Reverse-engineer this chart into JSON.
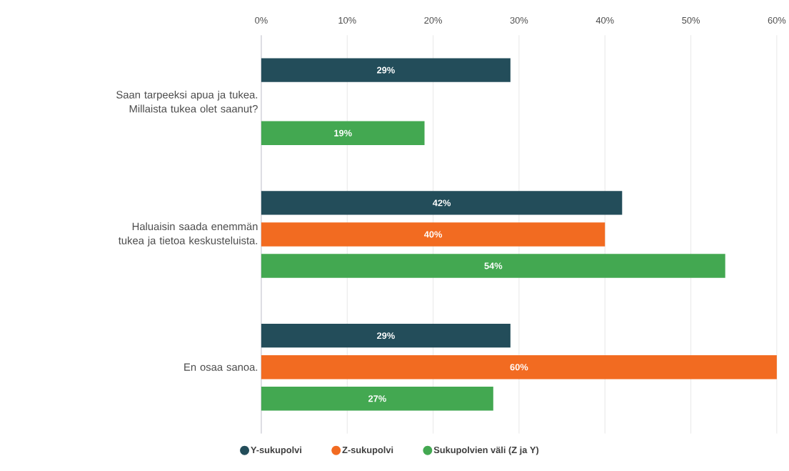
{
  "chart_data": {
    "type": "bar",
    "orientation": "horizontal",
    "categories": [
      "Saan tarpeeksi apua ja tukea. Millaista tukea olet saanut?",
      "Haluaisin saada enemmän tukea ja tietoa keskusteluista.",
      "En osaa sanoa."
    ],
    "series": [
      {
        "name": "Y-sukupolvi",
        "color": "#234d5a",
        "values": [
          29,
          42,
          29
        ],
        "value_labels": [
          "29%",
          "42%",
          "29%"
        ]
      },
      {
        "name": "Z-sukupolvi",
        "color": "#f26b21",
        "values": [
          null,
          40,
          60
        ],
        "value_labels": [
          null,
          "40%",
          "60%"
        ]
      },
      {
        "name": "Sukupolvien väli (Z ja Y)",
        "color": "#43a851",
        "values": [
          19,
          54,
          27
        ],
        "value_labels": [
          "19%",
          "54%",
          "27%"
        ]
      }
    ],
    "xlim": [
      0,
      60
    ],
    "xticks": [
      {
        "value": 0,
        "label": "0%"
      },
      {
        "value": 10,
        "label": "10%"
      },
      {
        "value": 20,
        "label": "20%"
      },
      {
        "value": 30,
        "label": "30%"
      },
      {
        "value": 40,
        "label": "40%"
      },
      {
        "value": 50,
        "label": "50%"
      },
      {
        "value": 60,
        "label": "60%"
      }
    ],
    "grid": "x",
    "legend": "bottom"
  }
}
